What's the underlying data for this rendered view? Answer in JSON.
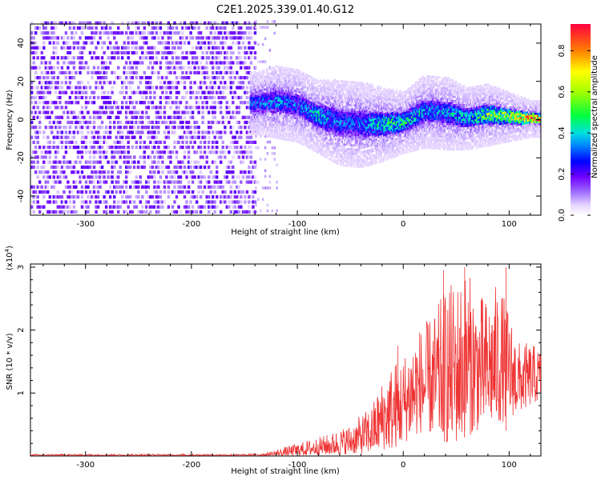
{
  "title": "C2E1.2025.339.01.40.G12",
  "chart_data": [
    {
      "type": "heatmap",
      "xlabel": "Height of straight line (km)",
      "ylabel": "Frequency (Hz)",
      "xlim": [
        -352,
        130
      ],
      "ylim": [
        -50,
        50
      ],
      "xticks": [
        -300,
        -200,
        -100,
        0,
        100
      ],
      "yticks": [
        -40,
        -20,
        0,
        20,
        40
      ],
      "colorbar": {
        "label": "Normalized spectral amplitude",
        "range": [
          0,
          0.93
        ],
        "ticks": [
          0,
          0.2,
          0.4,
          0.6,
          0.8
        ],
        "colormap": "rainbow-white-to-red"
      },
      "noise_region": {
        "x_range": [
          -352,
          -140
        ],
        "typical_amplitude": 0.15
      },
      "signal_track": {
        "description_points": [
          {
            "x": -140,
            "center_freq": 8,
            "width_hz": 10,
            "amplitude": 0.3
          },
          {
            "x": -120,
            "center_freq": 9,
            "width_hz": 12,
            "amplitude": 0.35
          },
          {
            "x": -100,
            "center_freq": 7,
            "width_hz": 12,
            "amplitude": 0.3
          },
          {
            "x": -80,
            "center_freq": 1,
            "width_hz": 12,
            "amplitude": 0.4
          },
          {
            "x": -60,
            "center_freq": -2,
            "width_hz": 14,
            "amplitude": 0.3
          },
          {
            "x": -40,
            "center_freq": -3,
            "width_hz": 14,
            "amplitude": 0.3
          },
          {
            "x": -20,
            "center_freq": -3,
            "width_hz": 12,
            "amplitude": 0.45
          },
          {
            "x": 0,
            "center_freq": -2,
            "width_hz": 10,
            "amplitude": 0.45
          },
          {
            "x": 20,
            "center_freq": 4,
            "width_hz": 12,
            "amplitude": 0.35
          },
          {
            "x": 40,
            "center_freq": 3,
            "width_hz": 12,
            "amplitude": 0.35
          },
          {
            "x": 60,
            "center_freq": 0,
            "width_hz": 10,
            "amplitude": 0.4
          },
          {
            "x": 80,
            "center_freq": 2,
            "width_hz": 10,
            "amplitude": 0.55
          },
          {
            "x": 100,
            "center_freq": 1,
            "width_hz": 8,
            "amplitude": 0.6
          },
          {
            "x": 120,
            "center_freq": 0,
            "width_hz": 6,
            "amplitude": 0.8
          },
          {
            "x": 130,
            "center_freq": 0,
            "width_hz": 6,
            "amplitude": 0.85
          }
        ]
      }
    },
    {
      "type": "line",
      "xlabel": "Height of straight line (km)",
      "ylabel": "SNR (10 * v/v)",
      "scale_label": "(x10",
      "scale_exponent": "4",
      "scale_suffix": ")",
      "xlim": [
        -352,
        130
      ],
      "ylim": [
        0,
        3.05
      ],
      "xticks": [
        -300,
        -200,
        -100,
        0,
        100
      ],
      "yticks": [
        1,
        2,
        3
      ],
      "color": "#ee3333",
      "envelope": [
        {
          "x": -352,
          "low": 0.0,
          "high": 0.03
        },
        {
          "x": -150,
          "low": 0.0,
          "high": 0.03
        },
        {
          "x": -130,
          "low": 0.0,
          "high": 0.05
        },
        {
          "x": -110,
          "low": 0.0,
          "high": 0.15
        },
        {
          "x": -90,
          "low": 0.01,
          "high": 0.25
        },
        {
          "x": -70,
          "low": 0.02,
          "high": 0.35
        },
        {
          "x": -50,
          "low": 0.03,
          "high": 0.5
        },
        {
          "x": -30,
          "low": 0.05,
          "high": 0.8
        },
        {
          "x": -20,
          "low": 0.1,
          "high": 1.2
        },
        {
          "x": -10,
          "low": 0.1,
          "high": 1.5
        },
        {
          "x": 0,
          "low": 0.2,
          "high": 1.6
        },
        {
          "x": 10,
          "low": 0.3,
          "high": 2.0
        },
        {
          "x": 20,
          "low": 0.4,
          "high": 2.1
        },
        {
          "x": 30,
          "low": 0.3,
          "high": 2.3
        },
        {
          "x": 40,
          "low": 0.2,
          "high": 2.7
        },
        {
          "x": 50,
          "low": 0.2,
          "high": 2.8
        },
        {
          "x": 60,
          "low": 0.3,
          "high": 3.0
        },
        {
          "x": 70,
          "low": 0.4,
          "high": 2.6
        },
        {
          "x": 80,
          "low": 0.5,
          "high": 2.5
        },
        {
          "x": 90,
          "low": 0.5,
          "high": 2.8
        },
        {
          "x": 100,
          "low": 0.6,
          "high": 2.3
        },
        {
          "x": 110,
          "low": 0.7,
          "high": 1.8
        },
        {
          "x": 120,
          "low": 0.8,
          "high": 1.8
        },
        {
          "x": 130,
          "low": 0.9,
          "high": 1.7
        }
      ],
      "peaks": [
        {
          "x": 38,
          "y": 2.95
        },
        {
          "x": 58,
          "y": 3.0
        },
        {
          "x": 97,
          "y": 3.0
        },
        {
          "x": -5,
          "y": 1.75
        }
      ]
    }
  ]
}
